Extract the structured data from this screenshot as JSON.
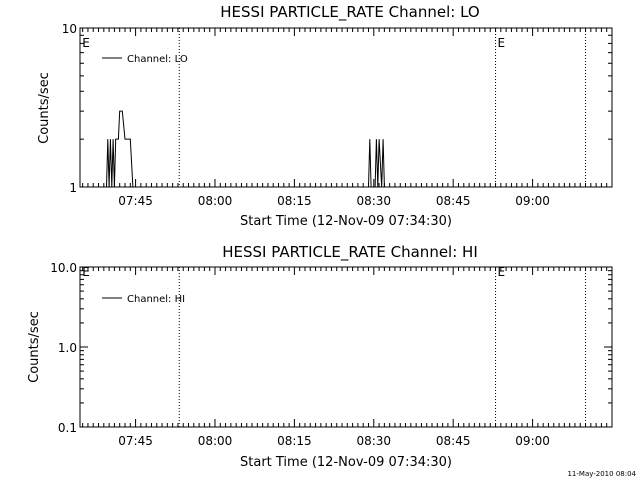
{
  "chart_data": [
    {
      "type": "line",
      "title": "HESSI PARTICLE_RATE Channel: LO",
      "ylabel": "Counts/sec",
      "xlabel": "Start Time (12-Nov-09 07:34:30)",
      "yscale": "log",
      "ylim": [
        1,
        10
      ],
      "ytick_labels": [
        "1",
        "10"
      ],
      "xlim": [
        "07:34:30",
        "09:15:00"
      ],
      "xtick_labels": [
        "07:45",
        "08:00",
        "08:15",
        "08:30",
        "08:45",
        "09:00"
      ],
      "legend": {
        "placement": "top-left",
        "label": "Channel: LO"
      },
      "markers": [
        {
          "time": "07:53:15",
          "label": ""
        },
        {
          "time": "08:53:00",
          "label": "E"
        },
        {
          "time": "09:10:00",
          "label": ""
        }
      ],
      "edge_label": "E",
      "series": [
        {
          "name": "Channel: LO",
          "x": [
            "07:39:00",
            "07:39:30",
            "07:39:45",
            "07:40:00",
            "07:40:15",
            "07:40:30",
            "07:40:45",
            "07:41:00",
            "07:41:15",
            "07:41:30",
            "07:41:45",
            "07:42:00",
            "07:42:30",
            "07:43:00",
            "07:43:30",
            "07:44:00",
            "07:44:30",
            "07:45:00",
            "07:45:30",
            "08:29:00",
            "08:29:15",
            "08:29:30",
            "08:29:45",
            "08:30:15",
            "08:30:30",
            "08:30:45",
            "08:31:00",
            "08:31:30",
            "08:31:45",
            "08:32:00",
            "08:32:15"
          ],
          "values": [
            1,
            1,
            2,
            1,
            2,
            1,
            2,
            1,
            2,
            2,
            2,
            3,
            3,
            2,
            2,
            2,
            1,
            1,
            1,
            1,
            2,
            1,
            1,
            1,
            2,
            1,
            2,
            1,
            2,
            1,
            1
          ]
        }
      ]
    },
    {
      "type": "line",
      "title": "HESSI PARTICLE_RATE Channel: HI",
      "ylabel": "Counts/sec",
      "xlabel": "Start Time (12-Nov-09 07:34:30)",
      "yscale": "log",
      "ylim": [
        0.1,
        10
      ],
      "ytick_labels": [
        "0.1",
        "1.0",
        "10.0"
      ],
      "xlim": [
        "07:34:30",
        "09:15:00"
      ],
      "xtick_labels": [
        "07:45",
        "08:00",
        "08:15",
        "08:30",
        "08:45",
        "09:00"
      ],
      "legend": {
        "placement": "top-left",
        "label": "Channel: HI"
      },
      "markers": [
        {
          "time": "07:53:15",
          "label": ""
        },
        {
          "time": "08:53:00",
          "label": "E"
        },
        {
          "time": "09:10:00",
          "label": ""
        }
      ],
      "edge_label": "E",
      "series": [
        {
          "name": "Channel: HI",
          "x": [],
          "values": []
        }
      ]
    }
  ],
  "footer": {
    "timestamp": "11-May-2010 08:04"
  }
}
